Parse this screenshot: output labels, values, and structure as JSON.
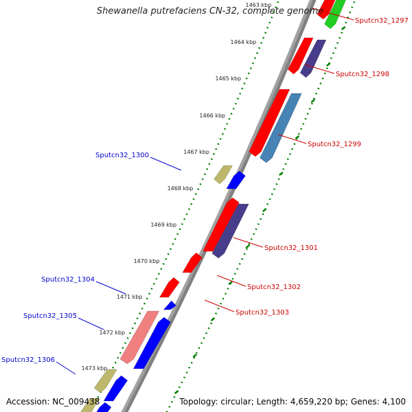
{
  "title": "Shewanella putrefaciens CN-32, complete genome",
  "accession": "Accession: NC_009438",
  "summary": "Topology: circular; Length: 4,659,220 bp; Genes: 4,100",
  "kbp_labels": [
    "1463 kbp",
    "1464 kbp",
    "1465 kbp",
    "1466 kbp",
    "1467 kbp",
    "1468 kbp",
    "1469 kbp",
    "1470 kbp",
    "1471 kbp",
    "1472 kbp",
    "1473 kbp"
  ],
  "gene_labels": {
    "right": [
      "Sputcn32_1297",
      "Sputcn32_1298",
      "Sputcn32_1299",
      "Sputcn32_1301",
      "Sputcn32_1302",
      "Sputcn32_1303"
    ],
    "left": [
      "Sputcn32_1300",
      "Sputcn32_1304",
      "Sputcn32_1305",
      "Sputcn32_1306"
    ]
  },
  "colors": {
    "forward_label": "#cc0000",
    "reverse_label": "#0000cc",
    "cds_red": "#ff0000",
    "cds_blue": "#0000ff",
    "cds_purple": "#483d8b",
    "cds_steelblue": "#4682b4",
    "cds_green": "#22cc22",
    "cds_khaki": "#bdb76b",
    "cds_pink": "#f08080",
    "backbone": "#808080",
    "tick_green": "#008000"
  }
}
